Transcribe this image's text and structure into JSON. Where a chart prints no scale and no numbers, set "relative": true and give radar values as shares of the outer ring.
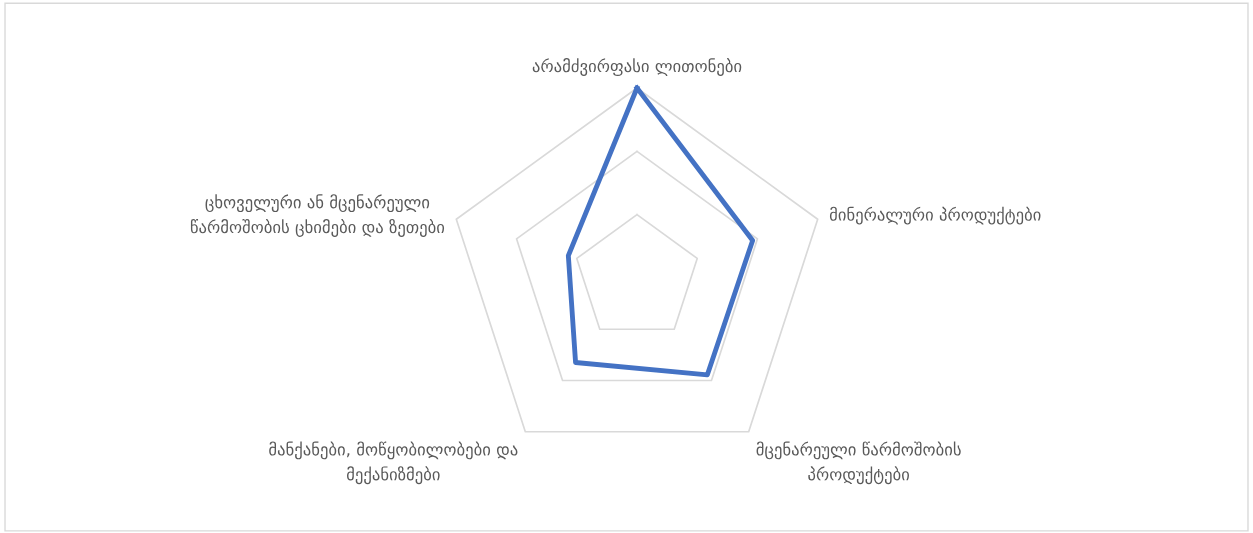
{
  "chart_data": {
    "type": "radar",
    "relative": true,
    "grid": true,
    "categories": [
      "არამძვირფასი ლითონები",
      "მინერალური პროდუქტები",
      "მცენარეული წარმოშობის პროდუქტები",
      "მანქანები, მოწყობილობები და მექანიზმები",
      "ცხოველური ან მცენარეული წარმოშობის ცხიმები და ზეთები"
    ],
    "series": [
      {
        "color": "#4472c4",
        "values": [
          1.0,
          0.64,
          0.63,
          0.55,
          0.38
        ]
      }
    ]
  }
}
